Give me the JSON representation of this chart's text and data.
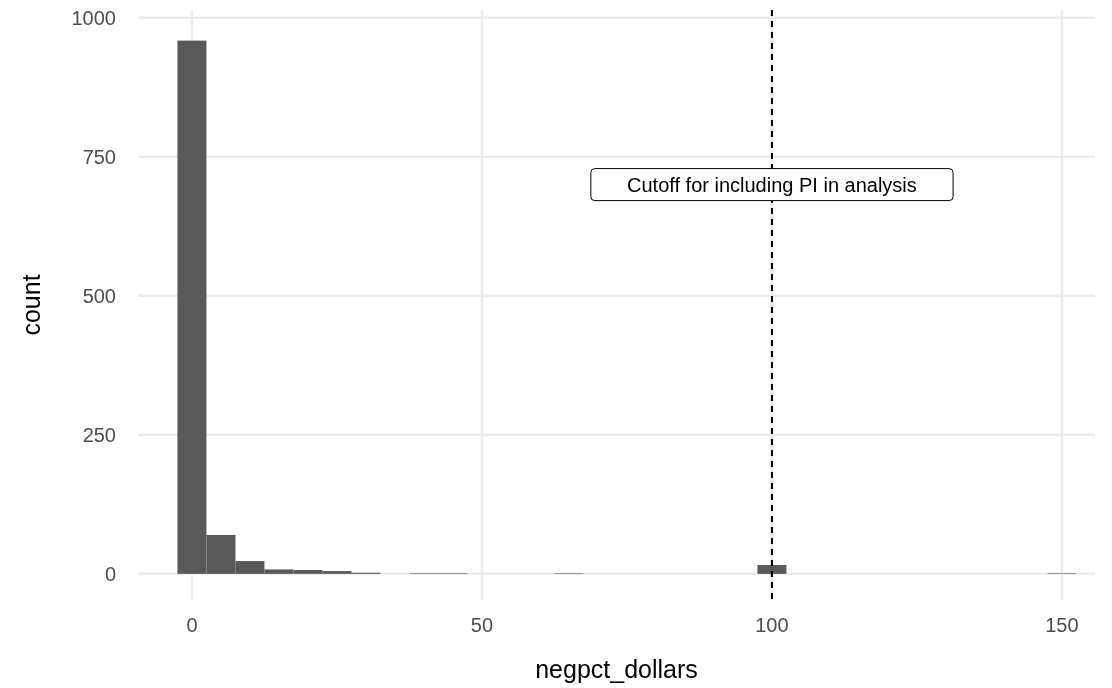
{
  "chart_data": {
    "type": "histogram",
    "xlabel": "negpct_dollars",
    "ylabel": "count",
    "bins": [
      -2.5,
      2.5,
      7.5,
      12.5,
      17.5,
      22.5,
      27.5,
      32.5,
      37.5,
      42.5,
      47.5,
      52.5,
      57.5,
      62.5,
      67.5,
      72.5,
      77.5,
      82.5,
      87.5,
      92.5,
      97.5,
      102.5,
      107.5,
      112.5,
      117.5,
      122.5,
      127.5,
      132.5,
      137.5,
      142.5,
      147.5,
      152.5
    ],
    "values": [
      959,
      70,
      23,
      8,
      7,
      5,
      2,
      0,
      1,
      1,
      0,
      0,
      0,
      1,
      0,
      0,
      0,
      0,
      0,
      0,
      16,
      0,
      0,
      0,
      0,
      0,
      0,
      0,
      0,
      0,
      1
    ],
    "color": "#595959",
    "xlim": [
      -9.3,
      155.7
    ],
    "ylim": [
      -47,
      1014
    ],
    "xticks": [
      0,
      50,
      100,
      150
    ],
    "yticks": [
      0,
      250,
      500,
      750,
      1000
    ],
    "grid": true,
    "ref_lines": [
      {
        "axis": "x",
        "value": 100,
        "color": "#000000",
        "line_style": "dashed"
      }
    ],
    "annotations": [
      {
        "text": "Cutoff for including PI in analysis",
        "x": 100,
        "y": 700
      }
    ]
  }
}
